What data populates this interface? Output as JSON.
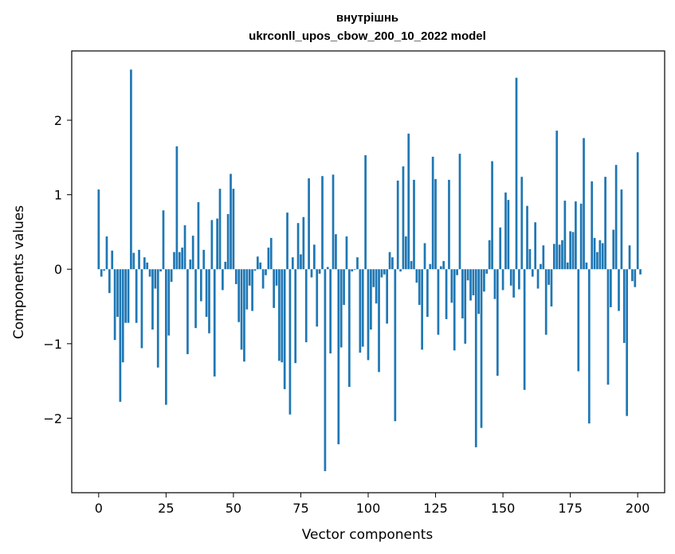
{
  "chart_data": {
    "type": "bar",
    "title": "внутрішнь",
    "subtitle": "ukrconll_upos_cbow_200_10_2022 model",
    "xlabel": "Vector components",
    "ylabel": "Components values",
    "xlim": [
      -10,
      210
    ],
    "ylim": [
      -3.0,
      2.93
    ],
    "xticks": [
      0,
      25,
      50,
      75,
      100,
      125,
      150,
      175,
      200
    ],
    "xtick_labels": [
      "0",
      "25",
      "50",
      "75",
      "100",
      "125",
      "150",
      "175",
      "200"
    ],
    "yticks": [
      -2,
      -1,
      0,
      1,
      2
    ],
    "ytick_labels": [
      "−2",
      "−1",
      "0",
      "1",
      "2"
    ],
    "bar_color": "#1f77b4",
    "values": [
      1.07,
      -0.1,
      -0.02,
      0.44,
      -0.32,
      0.25,
      -0.95,
      -0.64,
      -1.78,
      -1.25,
      -0.72,
      -0.72,
      2.68,
      0.22,
      -0.72,
      0.26,
      -1.06,
      0.16,
      0.09,
      -0.1,
      -0.81,
      -0.26,
      -1.32,
      -0.03,
      0.79,
      -1.82,
      -0.89,
      -0.17,
      0.23,
      1.65,
      0.23,
      0.29,
      0.59,
      -1.14,
      0.13,
      0.45,
      -0.79,
      0.9,
      -0.43,
      0.26,
      -0.64,
      -0.86,
      0.66,
      -1.44,
      0.68,
      1.08,
      -0.28,
      0.1,
      0.74,
      1.28,
      1.08,
      -0.2,
      -0.71,
      -1.08,
      -1.24,
      -0.54,
      -0.22,
      -0.56,
      -0.02,
      0.17,
      0.09,
      -0.26,
      -0.08,
      0.29,
      0.42,
      -0.52,
      -0.22,
      -1.23,
      -1.25,
      -1.61,
      0.76,
      -1.95,
      0.16,
      -1.26,
      0.62,
      0.2,
      0.7,
      -0.98,
      1.22,
      -0.11,
      0.33,
      -0.77,
      -0.06,
      1.25,
      -2.71,
      0.03,
      -1.13,
      1.27,
      0.47,
      -2.35,
      -1.05,
      -0.48,
      0.44,
      -1.58,
      -0.03,
      -0.01,
      0.16,
      -1.12,
      -1.04,
      1.53,
      -1.22,
      -0.81,
      -0.24,
      -0.46,
      -1.38,
      -0.11,
      -0.07,
      -0.73,
      0.23,
      0.16,
      -2.04,
      1.19,
      -0.03,
      1.38,
      0.44,
      1.82,
      0.11,
      1.2,
      -0.18,
      -0.48,
      -1.08,
      0.35,
      -0.64,
      0.07,
      1.51,
      1.21,
      -0.88,
      0.04,
      0.11,
      -0.67,
      1.2,
      -0.45,
      -1.09,
      -0.08,
      1.55,
      -0.66,
      -1.0,
      -0.15,
      -0.42,
      -0.35,
      -2.39,
      -0.6,
      -2.13,
      -0.3,
      -0.06,
      0.39,
      1.45,
      -0.4,
      -1.43,
      0.56,
      -0.28,
      1.03,
      0.93,
      -0.22,
      -0.38,
      2.57,
      -0.27,
      1.24,
      -1.62,
      0.85,
      0.27,
      -0.1,
      0.63,
      -0.26,
      0.07,
      0.32,
      -0.88,
      -0.21,
      -0.5,
      0.34,
      1.86,
      0.33,
      0.39,
      0.92,
      0.09,
      0.51,
      0.5,
      0.91,
      -1.37,
      0.88,
      1.76,
      0.09,
      -2.07,
      1.18,
      0.42,
      0.23,
      0.39,
      0.35,
      1.24,
      -1.55,
      -0.51,
      0.53,
      1.4,
      -0.56,
      1.07,
      -0.99,
      -1.97,
      0.32,
      -0.16,
      -0.24,
      1.57,
      -0.07
    ]
  }
}
